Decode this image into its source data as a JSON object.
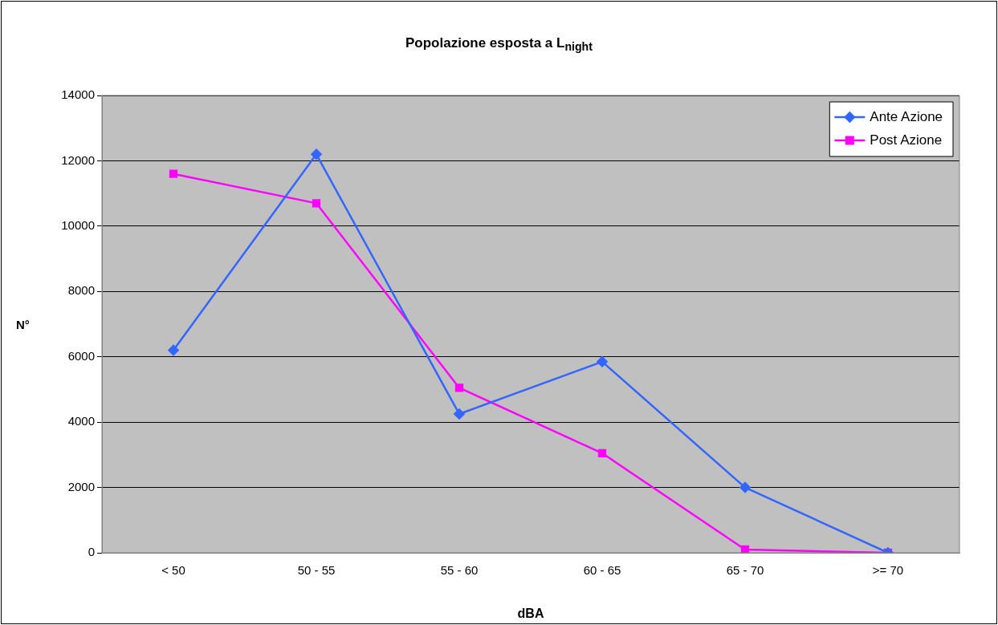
{
  "chart_data": {
    "type": "line",
    "title": "Popolazione esposta a L$_{night}$",
    "xlabel": "dBA",
    "ylabel": "N°",
    "categories": [
      "< 50",
      "50 - 55",
      "55 - 60",
      "60 - 65",
      "65 - 70",
      ">= 70"
    ],
    "series": [
      {
        "name": "Ante Azione",
        "color": "#3366ff",
        "marker": "diamond",
        "values": [
          6200,
          12200,
          4250,
          5850,
          2000,
          0
        ]
      },
      {
        "name": "Post Azione",
        "color": "#ff00ff",
        "marker": "square",
        "values": [
          11600,
          10700,
          5050,
          3050,
          100,
          0
        ]
      }
    ],
    "ylim": [
      0,
      14000
    ],
    "yticks": [
      0,
      2000,
      4000,
      6000,
      8000,
      10000,
      12000,
      14000
    ],
    "grid": "y",
    "legend": "top right",
    "line_style": "solid"
  }
}
